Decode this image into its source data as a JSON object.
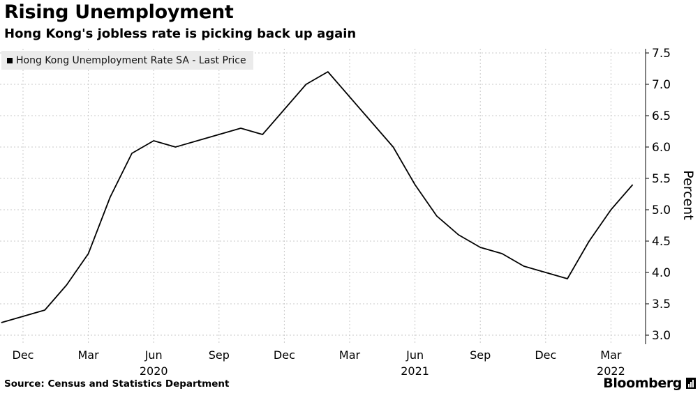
{
  "header": {
    "title": "Rising Unemployment",
    "subtitle": "Hong Kong's jobless rate is picking back up again"
  },
  "legend": {
    "label": "Hong Kong Unemployment Rate SA - Last Price"
  },
  "footer": {
    "source": "Source: Census and Statistics Department",
    "brand": "Bloomberg",
    "brand_icon": "bloomberg-terminal-icon"
  },
  "colors": {
    "line": "#000000",
    "grid": "#c8c8c8",
    "legend_bg": "#ebebeb",
    "background": "#ffffff"
  },
  "chart_data": {
    "type": "line",
    "title": "Rising Unemployment",
    "subtitle": "Hong Kong's jobless rate is picking back up again",
    "ylabel": "Percent",
    "xlabel": "",
    "y_axis_side": "right",
    "ylim": [
      3.0,
      7.5
    ],
    "yticks": [
      "3.0",
      "3.5",
      "4.0",
      "4.5",
      "5.0",
      "5.5",
      "6.0",
      "6.5",
      "7.0",
      "7.5"
    ],
    "x_month_ticks": [
      {
        "date": "2019-12",
        "label": "Dec"
      },
      {
        "date": "2020-03",
        "label": "Mar"
      },
      {
        "date": "2020-06",
        "label": "Jun"
      },
      {
        "date": "2020-09",
        "label": "Sep"
      },
      {
        "date": "2020-12",
        "label": "Dec"
      },
      {
        "date": "2021-03",
        "label": "Mar"
      },
      {
        "date": "2021-06",
        "label": "Jun"
      },
      {
        "date": "2021-09",
        "label": "Sep"
      },
      {
        "date": "2021-12",
        "label": "Dec"
      },
      {
        "date": "2022-03",
        "label": "Mar"
      }
    ],
    "x_year_labels": [
      {
        "date": "2020-06",
        "label": "2020"
      },
      {
        "date": "2021-06",
        "label": "2021"
      },
      {
        "date": "2022-03",
        "label": "2022"
      }
    ],
    "grid": true,
    "legend_position": "top-left",
    "series": [
      {
        "name": "Hong Kong Unemployment Rate SA - Last Price",
        "x": [
          "2019-11",
          "2019-12",
          "2020-01",
          "2020-02",
          "2020-03",
          "2020-04",
          "2020-05",
          "2020-06",
          "2020-07",
          "2020-08",
          "2020-09",
          "2020-10",
          "2020-11",
          "2020-12",
          "2021-01",
          "2021-02",
          "2021-03",
          "2021-04",
          "2021-05",
          "2021-06",
          "2021-07",
          "2021-08",
          "2021-09",
          "2021-10",
          "2021-11",
          "2021-12",
          "2022-01",
          "2022-02",
          "2022-03",
          "2022-04"
        ],
        "values": [
          3.2,
          3.3,
          3.4,
          3.8,
          4.3,
          5.2,
          5.9,
          6.1,
          6.0,
          6.1,
          6.2,
          6.3,
          6.2,
          6.6,
          7.0,
          7.2,
          6.8,
          6.4,
          6.0,
          5.4,
          4.9,
          4.6,
          4.4,
          4.3,
          4.1,
          4.0,
          3.9,
          4.5,
          5.0,
          5.4
        ]
      }
    ]
  }
}
